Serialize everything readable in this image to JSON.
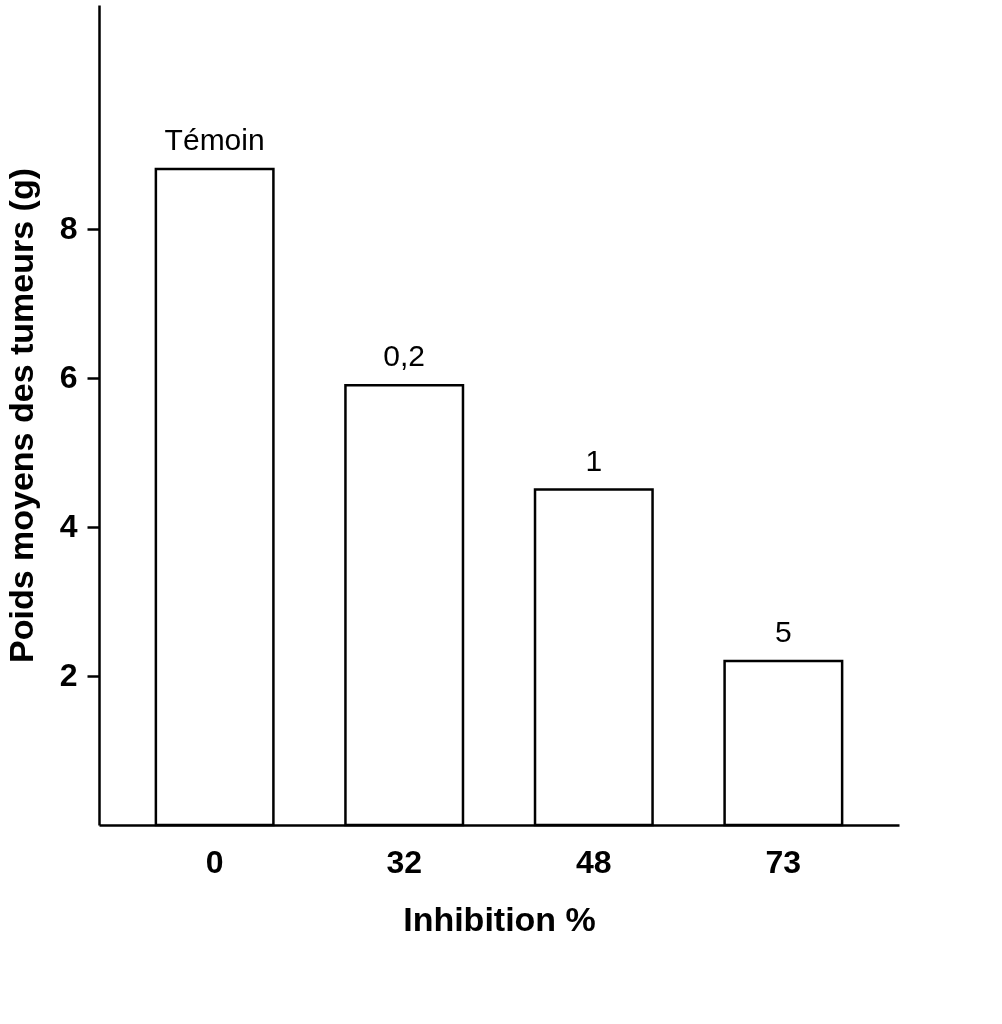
{
  "chart_data": {
    "type": "bar",
    "xlabel": "Inhibition %",
    "ylabel": "Poids moyens des  tumeurs (g)",
    "categories": [
      "0",
      "32",
      "48",
      "73"
    ],
    "values": [
      8.8,
      5.9,
      4.5,
      2.2
    ],
    "color": "#ffffff",
    "ylim": [
      0,
      11
    ],
    "yticks": [
      2,
      4,
      6,
      8
    ],
    "grid": false,
    "annotations": [
      {
        "text": "Témoin",
        "x": "0",
        "y": 8.8
      },
      {
        "text": "0,2",
        "x": "32",
        "y": 5.9
      },
      {
        "text": "1",
        "x": "48",
        "y": 4.5
      },
      {
        "text": "5",
        "x": "73",
        "y": 2.2
      }
    ]
  }
}
